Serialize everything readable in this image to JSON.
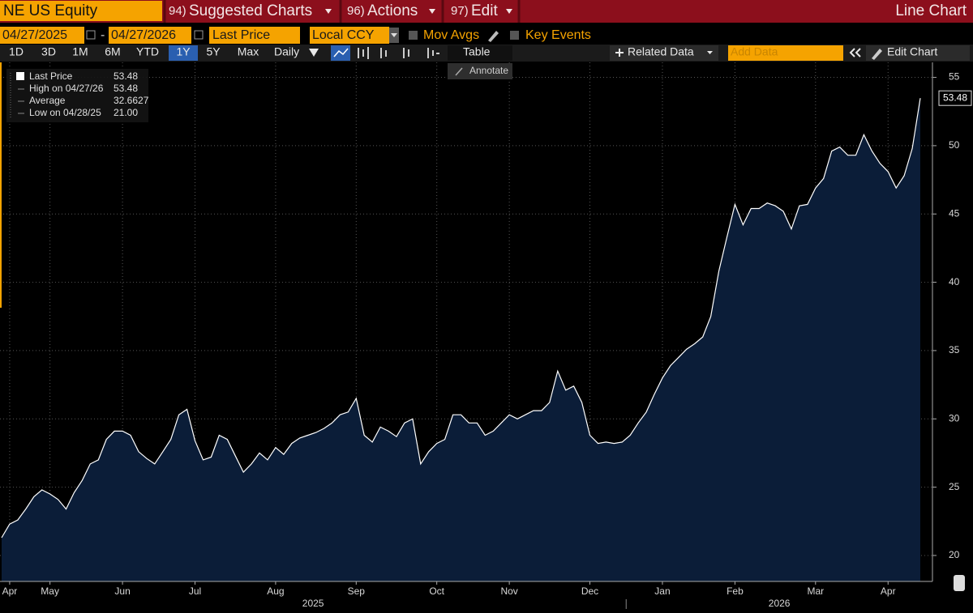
{
  "toolbar": {
    "security": "NE US Equity",
    "menus": [
      {
        "num": "94)",
        "label": "Suggested Charts"
      },
      {
        "num": "96)",
        "label": "Actions"
      },
      {
        "num": "97)",
        "label": "Edit"
      }
    ],
    "chart_kind": "Line Chart",
    "start_date": "04/27/2025",
    "date_sep": "-",
    "end_date": "04/27/2026",
    "field": "Last Price",
    "currency": "Local CCY",
    "options": [
      "Mov Avgs",
      "Key Events"
    ],
    "ranges": [
      "1D",
      "3D",
      "1M",
      "6M",
      "YTD",
      "1Y",
      "5Y",
      "Max"
    ],
    "frequency": "Daily",
    "table": "Table",
    "related": "Related Data",
    "add_data": "Add Data",
    "edit_chart": "Edit Chart",
    "annotate": "Annotate"
  },
  "chart_data": {
    "type": "line",
    "categories": [
      null,
      "Apr",
      null,
      null,
      null,
      null,
      "May",
      null,
      null,
      null,
      null,
      null,
      null,
      null,
      null,
      "Jun",
      null,
      null,
      null,
      null,
      null,
      null,
      null,
      null,
      "Jul",
      null,
      null,
      null,
      null,
      null,
      null,
      null,
      null,
      null,
      "Aug",
      null,
      null,
      null,
      null,
      null,
      null,
      null,
      null,
      null,
      "Sep",
      null,
      null,
      null,
      null,
      null,
      null,
      null,
      null,
      null,
      "Oct",
      null,
      null,
      null,
      null,
      null,
      null,
      null,
      null,
      "Nov",
      null,
      null,
      null,
      null,
      null,
      null,
      null,
      null,
      null,
      "Dec",
      null,
      null,
      null,
      null,
      null,
      null,
      null,
      null,
      "Jan",
      null,
      null,
      null,
      null,
      null,
      null,
      null,
      null,
      "Feb",
      null,
      null,
      null,
      null,
      null,
      null,
      null,
      null,
      null,
      "Mar",
      null,
      null,
      null,
      null,
      null,
      null,
      null,
      null,
      "Apr",
      null,
      null,
      null,
      null
    ],
    "x_groups": [
      "2025",
      "2026"
    ],
    "series": [
      {
        "name": "Last Price",
        "color": "#ffffff",
        "area_color": "#0b1d38",
        "values": [
          21.3,
          22.3,
          22.6,
          23.4,
          24.3,
          24.8,
          24.5,
          24.1,
          23.4,
          24.6,
          25.5,
          26.7,
          27.0,
          28.5,
          29.1,
          29.1,
          28.8,
          27.6,
          27.1,
          26.7,
          27.6,
          28.5,
          30.3,
          30.7,
          28.4,
          27.0,
          27.2,
          28.8,
          28.5,
          27.3,
          26.1,
          26.7,
          27.5,
          27.0,
          27.9,
          27.4,
          28.2,
          28.6,
          28.8,
          29.0,
          29.3,
          29.7,
          30.3,
          30.5,
          31.5,
          28.8,
          28.3,
          29.4,
          29.1,
          28.7,
          29.7,
          30.0,
          26.7,
          27.6,
          28.2,
          28.5,
          30.3,
          30.3,
          29.7,
          29.7,
          28.8,
          29.1,
          29.7,
          30.3,
          30.0,
          30.3,
          30.6,
          30.6,
          31.2,
          33.5,
          32.1,
          32.4,
          31.2,
          28.8,
          28.2,
          28.3,
          28.2,
          28.3,
          28.8,
          29.7,
          30.5,
          31.8,
          33.0,
          33.9,
          34.5,
          35.1,
          35.5,
          36.0,
          37.5,
          40.8,
          43.3,
          45.7,
          44.2,
          45.4,
          45.4,
          45.8,
          45.6,
          45.2,
          43.9,
          45.6,
          45.7,
          46.9,
          47.6,
          49.6,
          49.9,
          49.3,
          49.3,
          50.8,
          49.6,
          48.7,
          48.1,
          46.9,
          47.8,
          49.8,
          53.48
        ]
      }
    ],
    "legend_stats": [
      {
        "label": "High on 04/27/26",
        "value": "53.48"
      },
      {
        "label": "Average",
        "value": "32.6627"
      },
      {
        "label": "Low on 04/28/25",
        "value": "21.00"
      }
    ],
    "ylim": [
      18.1,
      56.1
    ],
    "yticks": [
      20,
      25,
      30,
      35,
      40,
      45,
      50,
      55
    ],
    "grid": true
  }
}
